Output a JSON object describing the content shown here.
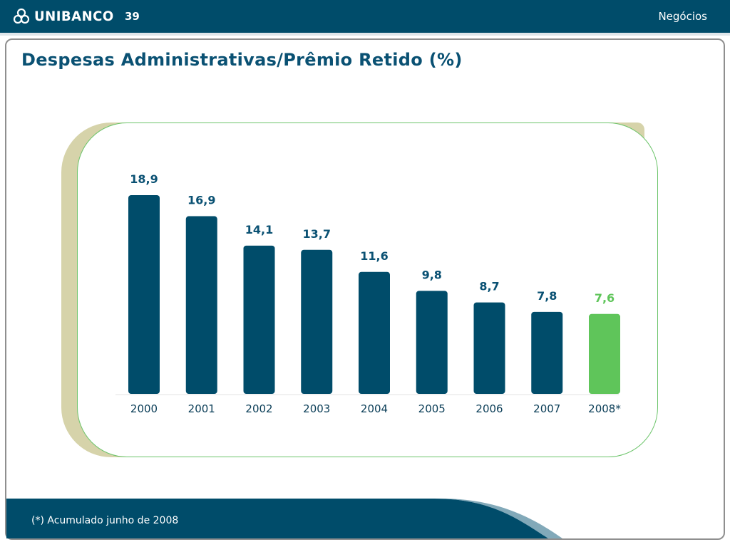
{
  "header": {
    "brand": "UNIBANCO",
    "page_number": "39",
    "section": "Negócios",
    "background_color": "#004c6a"
  },
  "title": "Despesas Administrativas/Prêmio Retido (%)",
  "footnote": "(*) Acumulado junho de 2008",
  "colors": {
    "bar_primary": "#004c6a",
    "bar_highlight": "#5fc55a",
    "title": "#0a5173",
    "label_primary": "#0a5173",
    "label_highlight": "#5fc55a"
  },
  "chart_data": {
    "type": "bar",
    "categories": [
      "2000",
      "2001",
      "2002",
      "2003",
      "2004",
      "2005",
      "2006",
      "2007",
      "2008*"
    ],
    "values": [
      18.9,
      16.9,
      14.1,
      13.7,
      11.6,
      9.8,
      8.7,
      7.8,
      7.6
    ],
    "data_labels": [
      "18,9",
      "16,9",
      "14,1",
      "13,7",
      "11,6",
      "9,8",
      "8,7",
      "7,8",
      "7,6"
    ],
    "highlight_index": 8,
    "title": "Despesas Administrativas/Prêmio Retido (%)",
    "xlabel": "",
    "ylabel": "",
    "ylim": [
      0,
      18.9
    ],
    "grid": false,
    "legend": "none"
  }
}
